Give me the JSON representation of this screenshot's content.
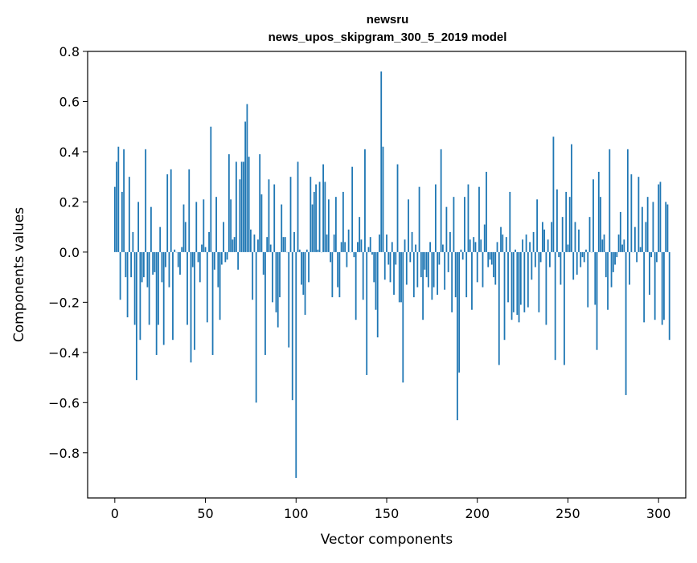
{
  "chart_data": {
    "type": "bar",
    "title": "newsru",
    "subtitle": "news_upos_skipgram_300_5_2019 model",
    "xlabel": "Vector components",
    "ylabel": "Components values",
    "xlim": [
      -15,
      315
    ],
    "ylim": [
      -0.98,
      0.8
    ],
    "xticks": [
      0,
      50,
      100,
      150,
      200,
      250,
      300
    ],
    "yticks": [
      -0.8,
      -0.6,
      -0.4,
      -0.2,
      0.0,
      0.2,
      0.4,
      0.6,
      0.8
    ],
    "ytick_labels": [
      "−0.8",
      "−0.6",
      "−0.4",
      "−0.2",
      "0.0",
      "0.2",
      "0.4",
      "0.6",
      "0.8"
    ],
    "xtick_labels": [
      "0",
      "50",
      "100",
      "150",
      "200",
      "250",
      "300"
    ],
    "bar_color": "#1f77b4",
    "grid": false,
    "values": [
      0.26,
      0.36,
      0.42,
      -0.19,
      0.24,
      0.41,
      -0.1,
      -0.26,
      0.3,
      -0.1,
      0.08,
      -0.29,
      -0.51,
      0.2,
      -0.35,
      -0.12,
      -0.1,
      0.41,
      -0.14,
      -0.29,
      0.18,
      -0.09,
      -0.08,
      -0.41,
      -0.29,
      0.1,
      -0.12,
      -0.37,
      -0.06,
      0.31,
      -0.14,
      0.33,
      -0.35,
      0.01,
      0.0,
      -0.06,
      -0.09,
      0.02,
      0.19,
      0.12,
      -0.29,
      0.33,
      -0.44,
      -0.06,
      -0.39,
      0.2,
      -0.04,
      -0.12,
      0.03,
      0.21,
      0.02,
      -0.28,
      0.08,
      0.5,
      -0.41,
      -0.07,
      0.22,
      -0.14,
      -0.27,
      -0.05,
      0.12,
      -0.04,
      -0.03,
      0.39,
      0.21,
      0.05,
      0.06,
      0.36,
      -0.07,
      0.29,
      0.36,
      0.36,
      0.52,
      0.59,
      0.38,
      0.09,
      -0.19,
      0.07,
      -0.6,
      0.05,
      0.39,
      0.23,
      -0.09,
      -0.41,
      0.06,
      0.29,
      0.03,
      -0.2,
      0.27,
      -0.24,
      -0.3,
      -0.18,
      0.19,
      0.06,
      0.06,
      0.0,
      -0.38,
      0.3,
      -0.59,
      0.08,
      -0.9,
      0.36,
      0.01,
      -0.13,
      -0.17,
      -0.25,
      0.01,
      -0.12,
      0.3,
      0.19,
      0.24,
      0.27,
      0.01,
      0.28,
      0.0,
      0.35,
      0.28,
      0.07,
      0.21,
      -0.04,
      -0.18,
      0.07,
      0.22,
      -0.14,
      -0.18,
      0.04,
      0.24,
      0.04,
      -0.06,
      0.09,
      0.0,
      0.34,
      -0.02,
      -0.27,
      0.04,
      0.14,
      0.05,
      -0.19,
      0.41,
      -0.49,
      0.02,
      0.06,
      -0.01,
      -0.12,
      -0.23,
      -0.34,
      0.07,
      0.72,
      0.42,
      -0.11,
      0.07,
      -0.05,
      -0.12,
      0.04,
      -0.17,
      -0.05,
      0.35,
      -0.2,
      -0.2,
      -0.52,
      0.05,
      -0.13,
      0.21,
      -0.04,
      0.08,
      -0.18,
      0.03,
      -0.14,
      0.26,
      -0.1,
      -0.27,
      -0.07,
      -0.1,
      -0.14,
      0.04,
      -0.19,
      -0.14,
      0.27,
      -0.17,
      -0.05,
      0.41,
      0.03,
      -0.15,
      0.18,
      -0.08,
      0.08,
      -0.24,
      0.22,
      -0.18,
      -0.67,
      -0.48,
      0.01,
      -0.03,
      0.22,
      -0.18,
      0.27,
      0.05,
      -0.23,
      0.06,
      0.04,
      -0.12,
      0.26,
      0.05,
      -0.14,
      0.11,
      0.32,
      -0.06,
      -0.03,
      -0.05,
      -0.1,
      -0.13,
      0.04,
      -0.45,
      0.1,
      0.07,
      -0.35,
      0.06,
      -0.2,
      0.24,
      -0.27,
      -0.24,
      0.01,
      -0.25,
      -0.28,
      -0.21,
      0.05,
      -0.24,
      0.07,
      -0.22,
      0.04,
      -0.11,
      0.08,
      -0.06,
      0.21,
      -0.24,
      -0.04,
      0.12,
      0.09,
      -0.29,
      0.05,
      -0.06,
      0.12,
      0.46,
      -0.43,
      0.25,
      -0.02,
      -0.13,
      0.14,
      -0.45,
      0.24,
      0.03,
      0.22,
      0.43,
      -0.11,
      0.12,
      -0.09,
      0.09,
      -0.06,
      -0.02,
      -0.04,
      0.01,
      -0.22,
      0.14,
      0.0,
      0.29,
      -0.21,
      -0.39,
      0.32,
      0.22,
      0.05,
      0.07,
      -0.1,
      -0.23,
      0.41,
      -0.14,
      -0.08,
      -0.05,
      -0.02,
      0.07,
      0.16,
      0.03,
      0.05,
      -0.57,
      0.41,
      -0.13,
      0.31,
      0.0,
      0.1,
      -0.04,
      0.3,
      0.02,
      0.18,
      -0.28,
      0.12,
      0.22,
      -0.17,
      -0.02,
      0.2,
      -0.27,
      -0.04,
      0.27,
      0.28,
      -0.29,
      -0.27,
      0.2,
      0.19,
      -0.35
    ]
  }
}
